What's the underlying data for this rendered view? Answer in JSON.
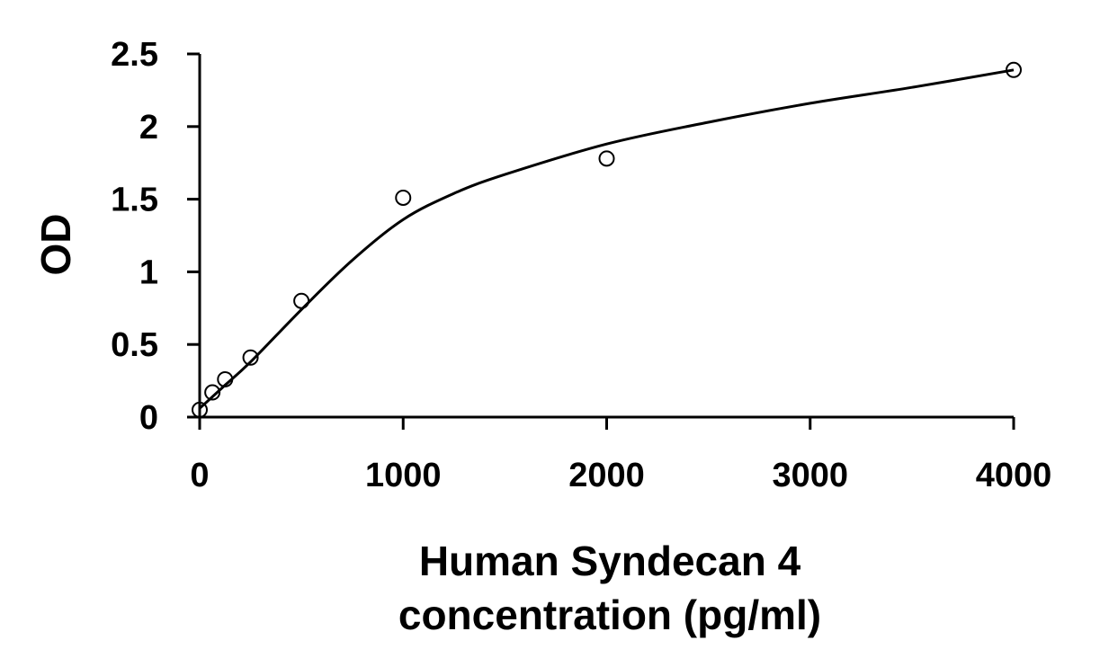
{
  "chart_data": {
    "type": "scatter",
    "xlabel_lines": [
      "Human Syndecan 4",
      "concentration (pg/ml)"
    ],
    "ylabel": "OD",
    "xlim": [
      0,
      4000
    ],
    "ylim": [
      0,
      2.5
    ],
    "x_ticks": [
      0,
      1000,
      2000,
      3000,
      4000
    ],
    "y_ticks": [
      0,
      0.5,
      1,
      1.5,
      2,
      2.5
    ],
    "x_tick_labels": [
      "0",
      "1000",
      "2000",
      "3000",
      "4000"
    ],
    "y_tick_labels": [
      "0",
      "0.5",
      "1",
      "1.5",
      "2",
      "2.5"
    ],
    "grid": false,
    "legend": "none",
    "series": [
      {
        "points": [
          {
            "x": 0,
            "y": 0.05
          },
          {
            "x": 62.5,
            "y": 0.17
          },
          {
            "x": 125,
            "y": 0.26
          },
          {
            "x": 250,
            "y": 0.41
          },
          {
            "x": 500,
            "y": 0.8
          },
          {
            "x": 1000,
            "y": 1.51
          },
          {
            "x": 2000,
            "y": 1.78
          },
          {
            "x": 4000,
            "y": 2.39
          }
        ],
        "marker": "open-circle",
        "fit_curve": [
          {
            "x": 0,
            "y": 0.06
          },
          {
            "x": 125,
            "y": 0.22
          },
          {
            "x": 250,
            "y": 0.38
          },
          {
            "x": 500,
            "y": 0.74
          },
          {
            "x": 750,
            "y": 1.08
          },
          {
            "x": 1000,
            "y": 1.36
          },
          {
            "x": 1250,
            "y": 1.54
          },
          {
            "x": 1500,
            "y": 1.67
          },
          {
            "x": 2000,
            "y": 1.88
          },
          {
            "x": 2500,
            "y": 2.03
          },
          {
            "x": 3000,
            "y": 2.16
          },
          {
            "x": 3500,
            "y": 2.27
          },
          {
            "x": 4000,
            "y": 2.39
          }
        ],
        "color": "#000000"
      }
    ]
  }
}
